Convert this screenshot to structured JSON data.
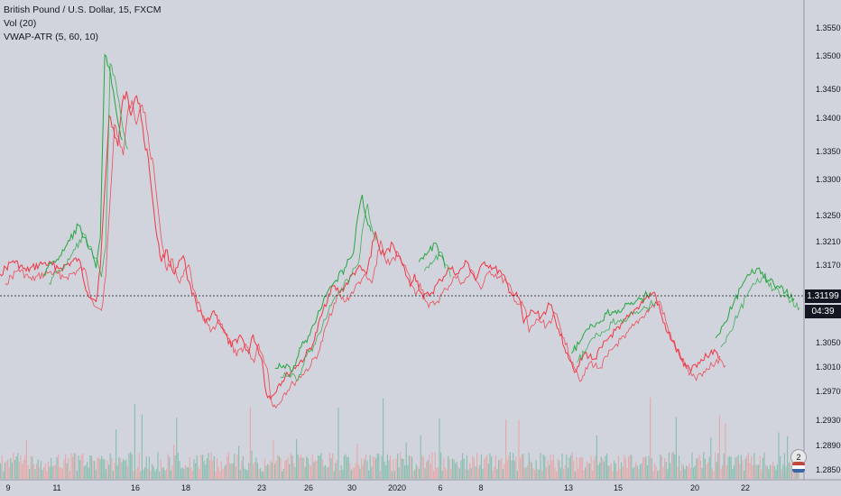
{
  "legend": {
    "symbol": "British Pound / U.S. Dollar, 15, FXCM",
    "vol": "Vol (20)",
    "indicator": "VWAP-ATR (5, 60, 10)"
  },
  "current_price": {
    "value": 1.31199,
    "label": "1.31199",
    "countdown": "04:39"
  },
  "colors": {
    "background": "#d1d4dc",
    "up": "#26a641",
    "down": "#f23645",
    "vol_up": "#7cb8a8",
    "vol_down": "#e8a0a0",
    "text": "#131722"
  },
  "icons": {
    "flag": "flag-icon",
    "badge_text": "2"
  },
  "chart_data": {
    "type": "line",
    "y_axis_ticks": [
      "1.35500",
      "1.35000",
      "1.34500",
      "1.34000",
      "1.33500",
      "1.33000",
      "1.32500",
      "1.32100",
      "1.31700",
      "1.30500",
      "1.30100",
      "1.29700",
      "1.29300",
      "1.28900",
      "1.28500"
    ],
    "ylim": [
      1.2835,
      1.3575
    ],
    "x_axis_ticks": [
      "9",
      "11",
      "16",
      "18",
      "23",
      "26",
      "30",
      "2020",
      "6",
      "8",
      "13",
      "15",
      "20",
      "22"
    ],
    "grid": false,
    "series": [
      {
        "color": "red",
        "points": [
          [
            0,
            1.314
          ],
          [
            3,
            1.3162
          ],
          [
            6,
            1.3145
          ],
          [
            10,
            1.3158
          ],
          [
            14,
            1.315
          ],
          [
            18,
            1.3165
          ],
          [
            20,
            1.311
          ],
          [
            22,
            1.3095
          ],
          [
            23,
            1.3152
          ],
          [
            25,
            1.34
          ],
          [
            26,
            1.338
          ],
          [
            27,
            1.335
          ],
          [
            28,
            1.342
          ],
          [
            29,
            1.344
          ],
          [
            30,
            1.34
          ],
          [
            31,
            1.343
          ],
          [
            32,
            1.342
          ],
          [
            33,
            1.336
          ],
          [
            34,
            1.333
          ],
          [
            35,
            1.326
          ],
          [
            36,
            1.32
          ],
          [
            37,
            1.316
          ],
          [
            38,
            1.318
          ],
          [
            40,
            1.314
          ],
          [
            42,
            1.317
          ],
          [
            43,
            1.313
          ],
          [
            45,
            1.309
          ],
          [
            47,
            1.306
          ],
          [
            49,
            1.308
          ],
          [
            51,
            1.305
          ],
          [
            53,
            1.302
          ],
          [
            55,
            1.304
          ],
          [
            57,
            1.301
          ],
          [
            58,
            1.304
          ],
          [
            60,
            1.3
          ],
          [
            61,
            1.2945
          ],
          [
            62,
            1.2935
          ],
          [
            64,
            1.296
          ],
          [
            66,
            1.2975
          ],
          [
            68,
            1.299
          ],
          [
            70,
            1.3005
          ],
          [
            72,
            1.303
          ],
          [
            74,
            1.308
          ],
          [
            76,
            1.312
          ],
          [
            78,
            1.311
          ],
          [
            80,
            1.313
          ],
          [
            82,
            1.315
          ],
          [
            84,
            1.314
          ],
          [
            86,
            1.321
          ],
          [
            87,
            1.318
          ],
          [
            88,
            1.317
          ],
          [
            90,
            1.319
          ],
          [
            92,
            1.316
          ],
          [
            94,
            1.312
          ],
          [
            95,
            1.314
          ],
          [
            97,
            1.31
          ],
          [
            99,
            1.311
          ],
          [
            101,
            1.313
          ],
          [
            103,
            1.315
          ],
          [
            105,
            1.314
          ],
          [
            107,
            1.316
          ],
          [
            109,
            1.313
          ],
          [
            111,
            1.316
          ],
          [
            113,
            1.315
          ],
          [
            115,
            1.314
          ],
          [
            117,
            1.311
          ],
          [
            119,
            1.31
          ],
          [
            120,
            1.306
          ],
          [
            122,
            1.308
          ],
          [
            124,
            1.307
          ],
          [
            126,
            1.309
          ],
          [
            128,
            1.305
          ],
          [
            130,
            1.301
          ],
          [
            132,
            1.298
          ],
          [
            134,
            1.301
          ],
          [
            136,
            1.3
          ],
          [
            138,
            1.302
          ],
          [
            140,
            1.304
          ],
          [
            142,
            1.305
          ],
          [
            144,
            1.307
          ],
          [
            146,
            1.3085
          ],
          [
            148,
            1.31
          ],
          [
            150,
            1.311
          ],
          [
            152,
            1.306
          ],
          [
            154,
            1.303
          ],
          [
            156,
            1.3
          ],
          [
            158,
            1.2985
          ],
          [
            160,
            1.2995
          ],
          [
            162,
            1.3005
          ],
          [
            163,
            1.3015
          ],
          [
            165,
            1.3005
          ]
        ]
      },
      {
        "color": "green",
        "points": [
          [
            10,
            1.314
          ],
          [
            12,
            1.316
          ],
          [
            14,
            1.317
          ],
          [
            16,
            1.3195
          ],
          [
            18,
            1.322
          ],
          [
            19,
            1.32
          ],
          [
            21,
            1.318
          ],
          [
            22,
            1.315
          ],
          [
            23,
            1.32
          ],
          [
            24,
            1.35
          ],
          [
            25,
            1.348
          ],
          [
            26,
            1.344
          ],
          [
            27,
            1.339
          ],
          [
            28,
            1.336
          ],
          [
            63,
            1.2985
          ],
          [
            65,
            1.299
          ],
          [
            67,
            1.298
          ],
          [
            69,
            1.302
          ],
          [
            71,
            1.304
          ],
          [
            73,
            1.308
          ],
          [
            75,
            1.311
          ],
          [
            77,
            1.313
          ],
          [
            79,
            1.315
          ],
          [
            81,
            1.3175
          ],
          [
            82,
            1.3235
          ],
          [
            83,
            1.327
          ],
          [
            84,
            1.323
          ],
          [
            85,
            1.321
          ],
          [
            96,
            1.316
          ],
          [
            98,
            1.3175
          ],
          [
            100,
            1.319
          ],
          [
            101,
            1.317
          ],
          [
            102,
            1.315
          ],
          [
            131,
            1.301
          ],
          [
            133,
            1.303
          ],
          [
            135,
            1.305
          ],
          [
            137,
            1.306
          ],
          [
            139,
            1.3075
          ],
          [
            141,
            1.308
          ],
          [
            143,
            1.3085
          ],
          [
            145,
            1.309
          ],
          [
            147,
            1.31
          ],
          [
            149,
            1.311
          ],
          [
            164,
            1.3035
          ],
          [
            166,
            1.306
          ],
          [
            168,
            1.309
          ],
          [
            170,
            1.312
          ],
          [
            172,
            1.314
          ],
          [
            174,
            1.315
          ],
          [
            176,
            1.313
          ],
          [
            178,
            1.312
          ],
          [
            180,
            1.311
          ],
          [
            182,
            1.31
          ]
        ]
      }
    ],
    "volume_profile": "histogram"
  }
}
